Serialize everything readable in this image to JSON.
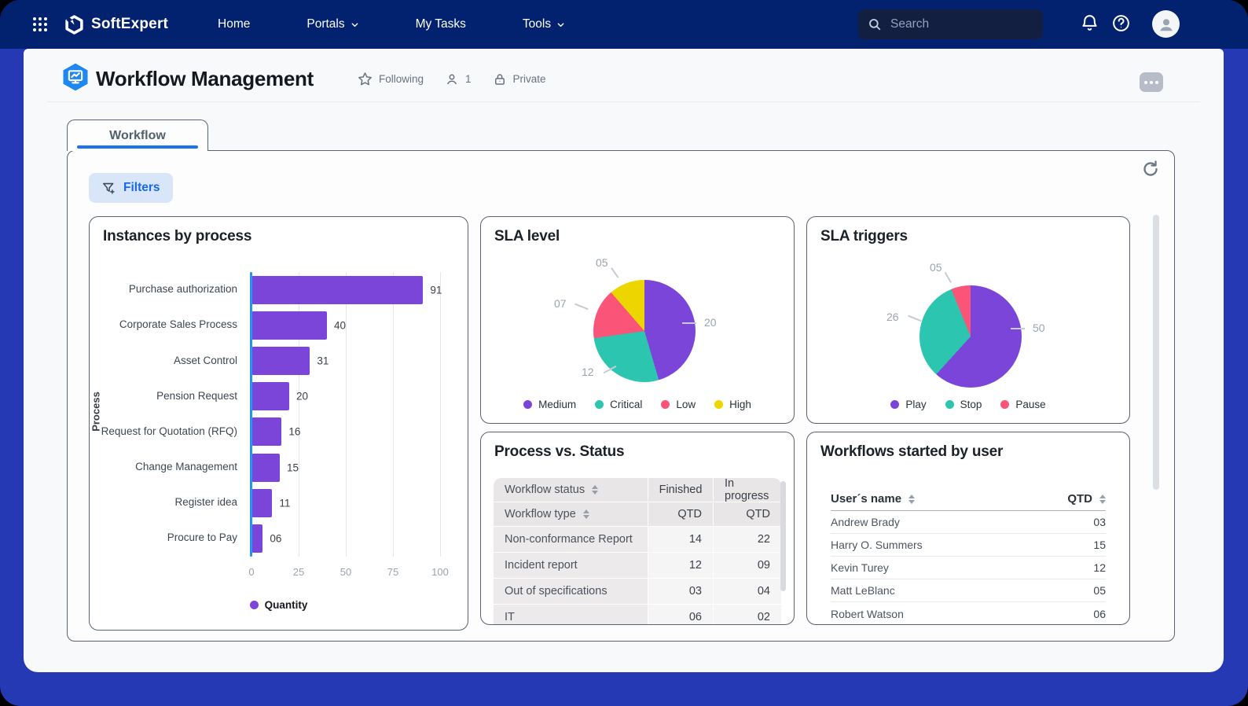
{
  "navbar": {
    "brand": "SoftExpert",
    "items": [
      {
        "label": "Home",
        "has_dropdown": false
      },
      {
        "label": "Portals",
        "has_dropdown": true
      },
      {
        "label": "My Tasks",
        "has_dropdown": false
      },
      {
        "label": "Tools",
        "has_dropdown": true
      }
    ],
    "search": {
      "placeholder": "Search"
    }
  },
  "header": {
    "title": "Workflow Management",
    "following_label": "Following",
    "followers_count": "1",
    "privacy_label": "Private"
  },
  "tabs": [
    {
      "label": "Workflow",
      "active": true
    }
  ],
  "toolbar": {
    "filters_label": "Filters"
  },
  "colors": {
    "frame_blue": "#2539B4",
    "navbar_navy": "#02216E",
    "accent_purple": "#7C45D9",
    "teal": "#2BC5B0",
    "pink": "#FA5479",
    "yellow": "#EDD600",
    "axis_blue": "#2196F3",
    "link_blue": "#1569EA",
    "tab_underline": "#1B74E8"
  },
  "chart_data": [
    {
      "id": "instances_by_process",
      "type": "bar",
      "orientation": "horizontal",
      "title": "Instances by process",
      "categories": [
        "Purchase authorization",
        "Corporate Sales Process",
        "Asset Control",
        "Pension Request",
        "Request for Quotation (RFQ)",
        "Change Management",
        "Register idea",
        "Procure to Pay"
      ],
      "values": [
        91,
        40,
        31,
        20,
        16,
        15,
        11,
        6
      ],
      "value_labels": [
        "91",
        "40",
        "31",
        "20",
        "16",
        "15",
        "11",
        "06"
      ],
      "xlabel": "",
      "ylabel": "Process",
      "xticks": [
        0,
        25,
        50,
        75,
        100
      ],
      "xlim": [
        0,
        100
      ],
      "grid": true,
      "bar_color": "#7C45D9",
      "legend": [
        {
          "label": "Quantity",
          "color": "#7C45D9"
        }
      ],
      "legend_position": "bottom"
    },
    {
      "id": "sla_level",
      "type": "pie",
      "title": "SLA level",
      "start_angle_deg": 0,
      "direction": "clockwise",
      "slices": [
        {
          "label": "Medium",
          "value": 20,
          "display": "20",
          "color": "#7C45D9"
        },
        {
          "label": "Critical",
          "value": 12,
          "display": "12",
          "color": "#2BC5B0"
        },
        {
          "label": "Low",
          "value": 7,
          "display": "07",
          "color": "#FA5479"
        },
        {
          "label": "High",
          "value": 5,
          "display": "05",
          "color": "#EDD600"
        }
      ],
      "legend_position": "bottom"
    },
    {
      "id": "sla_triggers",
      "type": "pie",
      "title": "SLA triggers",
      "start_angle_deg": 0,
      "direction": "clockwise",
      "slices": [
        {
          "label": "Play",
          "value": 50,
          "display": "50",
          "color": "#7C45D9"
        },
        {
          "label": "Stop",
          "value": 26,
          "display": "26",
          "color": "#2BC5B0"
        },
        {
          "label": "Pause",
          "value": 5,
          "display": "05",
          "color": "#FA5479"
        }
      ],
      "legend_position": "bottom"
    },
    {
      "id": "process_vs_status",
      "type": "table",
      "title": "Process vs. Status",
      "header_rows": [
        [
          "Workflow status",
          "Finished",
          "In progress"
        ],
        [
          "Workflow type",
          "QTD",
          "QTD"
        ]
      ],
      "sortable_headers": [
        "Workflow status",
        "Workflow type"
      ],
      "rows": [
        [
          "Non-conformance Report",
          "14",
          "22"
        ],
        [
          "Incident report",
          "12",
          "09"
        ],
        [
          "Out of specifications",
          "03",
          "04"
        ],
        [
          "IT",
          "06",
          "02"
        ]
      ]
    },
    {
      "id": "workflows_by_user",
      "type": "table",
      "title": "Workflows started by user",
      "columns": [
        "User´s name",
        "QTD"
      ],
      "rows": [
        [
          "Andrew Brady",
          "03"
        ],
        [
          "Harry O. Summers",
          "15"
        ],
        [
          "Kevin Turey",
          "12"
        ],
        [
          "Matt LeBlanc",
          "05"
        ],
        [
          "Robert Watson",
          "06"
        ]
      ]
    }
  ]
}
